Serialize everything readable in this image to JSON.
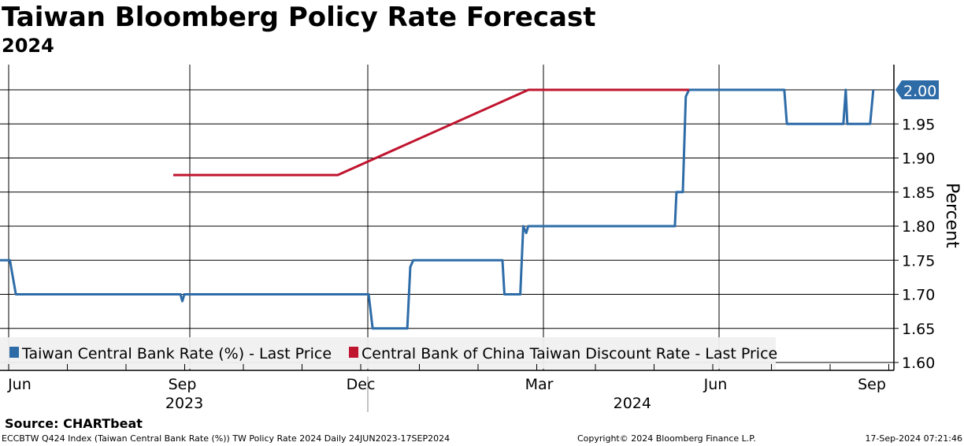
{
  "title": "Taiwan Bloomberg Policy Rate Forecast",
  "subtitle": "2024",
  "source": "Source: CHARTbeat",
  "footer": {
    "left": "ECCBTW Q424 Index (Taiwan Central Bank Rate (%)) TW Policy Rate 2024  Daily 24JUN2023-17SEP2024",
    "center": "Copyright© 2024 Bloomberg Finance L.P.",
    "right": "17-Sep-2024 07:21:46"
  },
  "chart_data": {
    "type": "line",
    "x_unit": "days since 24-Jun-2023",
    "xlim": [
      0,
      451
    ],
    "ylim": [
      1.6,
      2.0
    ],
    "ylabel": "Percent",
    "y_ticks": [
      "1.60",
      "1.65",
      "1.70",
      "1.75",
      "1.80",
      "1.85",
      "1.90",
      "1.95"
    ],
    "last_value_label": "2.00",
    "x_tick_labels": [
      {
        "label": "Jun",
        "day": 4
      },
      {
        "label": "Sep",
        "day": 92
      },
      {
        "label": "Dec",
        "day": 182
      },
      {
        "label": "Mar",
        "day": 272
      },
      {
        "label": "Jun",
        "day": 361
      },
      {
        "label": "Sep",
        "day": 451
      }
    ],
    "year_labels": [
      {
        "label": "2023",
        "day": 93
      },
      {
        "label": "2024",
        "day": 319
      }
    ],
    "grid": true,
    "legend_position": "bottom-left",
    "series": [
      {
        "name": "Taiwan Central Bank Rate (%) - Last Price",
        "color": "#2e6ca8",
        "points": [
          [
            0,
            1.75
          ],
          [
            5,
            1.75
          ],
          [
            8,
            1.7
          ],
          [
            91,
            1.7
          ],
          [
            92,
            1.69
          ],
          [
            93,
            1.7
          ],
          [
            186,
            1.7
          ],
          [
            188,
            1.65
          ],
          [
            205.5,
            1.65
          ],
          [
            207,
            1.74
          ],
          [
            208.5,
            1.75
          ],
          [
            253.5,
            1.75
          ],
          [
            254.5,
            1.7
          ],
          [
            262.5,
            1.7
          ],
          [
            264,
            1.8
          ],
          [
            265.5,
            1.79
          ],
          [
            266.5,
            1.8
          ],
          [
            340.5,
            1.8
          ],
          [
            341.3,
            1.85
          ],
          [
            344.5,
            1.85
          ],
          [
            346,
            1.99
          ],
          [
            347.6,
            2.0
          ],
          [
            395.7,
            2.0
          ],
          [
            397,
            1.95
          ],
          [
            425.5,
            1.95
          ],
          [
            426.7,
            2.0
          ],
          [
            427.5,
            1.95
          ],
          [
            439,
            1.95
          ],
          [
            440.6,
            2.0
          ]
        ]
      },
      {
        "name": "Central Bank of China Taiwan Discount Rate - Last Price",
        "color": "#c0152f",
        "points": [
          [
            87.4,
            1.875
          ],
          [
            170.4,
            1.875
          ],
          [
            266.6,
            2.0
          ],
          [
            347.6,
            2.0
          ]
        ]
      }
    ]
  }
}
